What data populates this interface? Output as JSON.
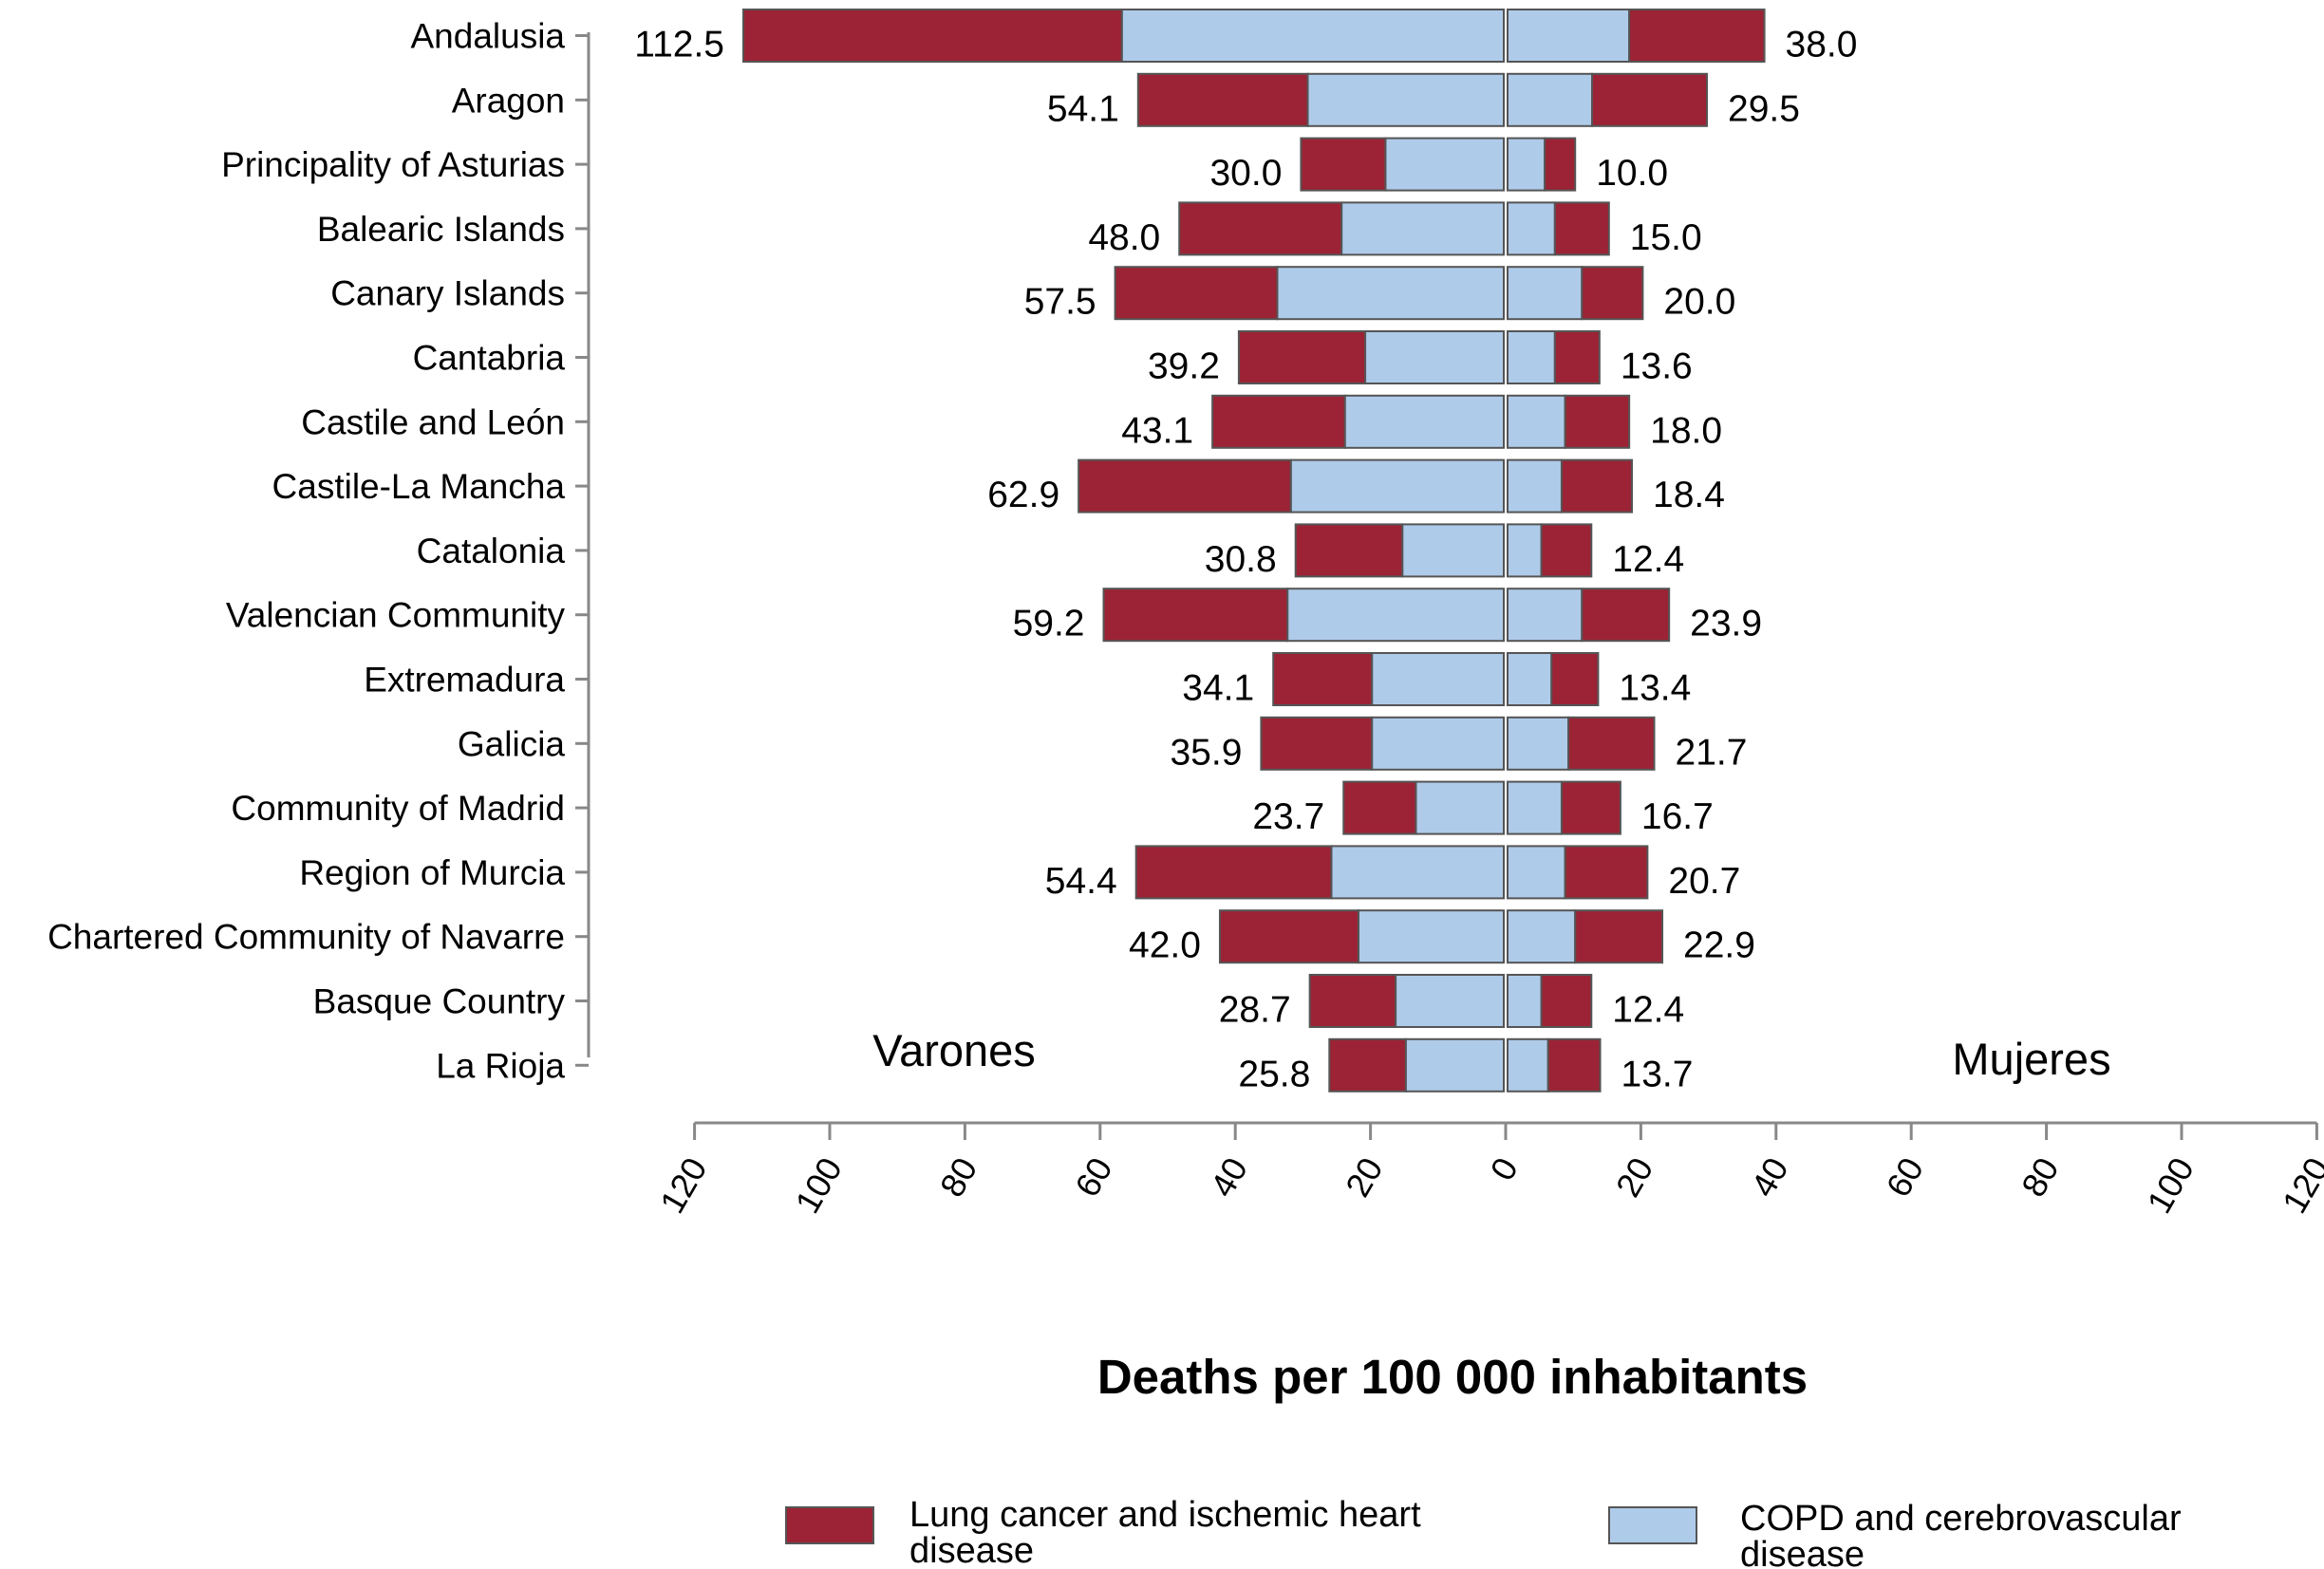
{
  "chart_data": {
    "type": "bar",
    "orientation": "horizontal-butterfly",
    "categories": [
      "Andalusia",
      "Aragon",
      "Principality of Asturias",
      "Balearic Islands",
      "Canary Islands",
      "Cantabria",
      "Castile and León",
      "Castile-La Mancha",
      "Catalonia",
      "Valencian Community",
      "Extremadura",
      "Galicia",
      "Community of Madrid",
      "Region of Murcia",
      "Chartered Community of Navarre",
      "Basque Country",
      "La Rioja"
    ],
    "groups": {
      "left": {
        "label": "Varones",
        "total_labels": [
          "112.5",
          "54.1",
          "30.0",
          "48.0",
          "57.5",
          "39.2",
          "43.1",
          "62.9",
          "30.8",
          "59.2",
          "34.1",
          "35.9",
          "23.7",
          "54.4",
          "42.0",
          "28.7",
          "25.8"
        ],
        "series": [
          {
            "name": "COPD and cerebrovascular disease",
            "values": [
              56.5,
              29.0,
              17.5,
              24.0,
              33.5,
              20.5,
              23.5,
              31.5,
              15.0,
              32.0,
              19.5,
              19.5,
              13.0,
              25.5,
              21.5,
              16.0,
              14.5
            ]
          },
          {
            "name": "Lung cancer and ischemic heart disease",
            "values": [
              56.0,
              25.1,
              12.5,
              24.0,
              24.0,
              18.7,
              19.6,
              31.4,
              15.8,
              27.2,
              14.6,
              16.4,
              10.7,
              28.9,
              20.5,
              12.7,
              11.3
            ]
          }
        ]
      },
      "right": {
        "label": "Mujeres",
        "total_labels": [
          "38.0",
          "29.5",
          "10.0",
          "15.0",
          "20.0",
          "13.6",
          "18.0",
          "18.4",
          "12.4",
          "23.9",
          "13.4",
          "21.7",
          "16.7",
          "20.7",
          "22.9",
          "12.4",
          "13.7"
        ],
        "series": [
          {
            "name": "COPD and cerebrovascular disease",
            "values": [
              18.0,
              12.5,
              5.5,
              7.0,
              11.0,
              7.0,
              8.5,
              8.0,
              5.0,
              11.0,
              6.5,
              9.0,
              8.0,
              8.5,
              10.0,
              5.0,
              6.0
            ]
          },
          {
            "name": "Lung cancer and ischemic heart disease",
            "values": [
              20.0,
              17.0,
              4.5,
              8.0,
              9.0,
              6.6,
              9.5,
              10.4,
              7.4,
              12.9,
              6.9,
              12.7,
              8.7,
              12.2,
              12.9,
              7.4,
              7.7
            ]
          }
        ]
      }
    },
    "x_ticks": [
      "120",
      "100",
      "80",
      "60",
      "40",
      "20",
      "0",
      "20",
      "40",
      "60",
      "80",
      "100",
      "120"
    ],
    "xlim": [
      -120,
      120
    ],
    "xlabel": "Deaths per 100 000 inhabitants",
    "legend": [
      {
        "label": "Lung cancer and ischemic heart disease",
        "color": "#9b2335"
      },
      {
        "label": "COPD and cerebrovascular disease",
        "color": "#afcbea"
      }
    ],
    "legend_position": "bottom",
    "grid": false
  },
  "colors": {
    "lung_heart": "#9b2335",
    "copd_cerebro": "#afcbea",
    "bar_border": "#555555",
    "axis": "#888888",
    "text": "#111111"
  }
}
